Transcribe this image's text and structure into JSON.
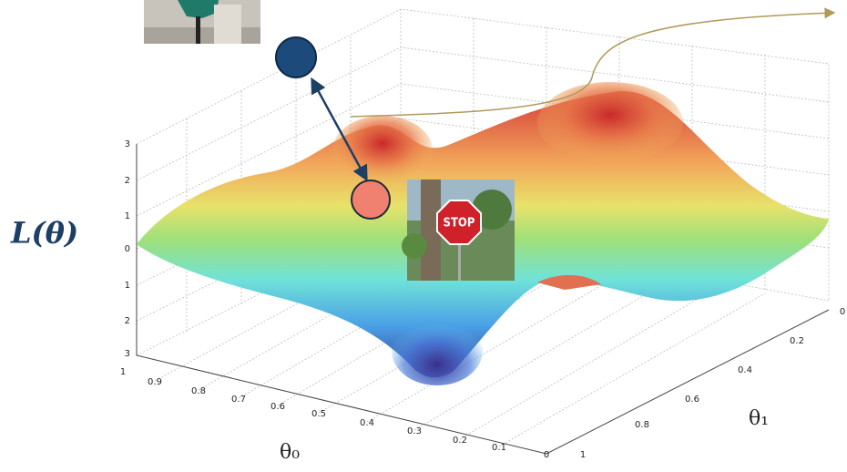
{
  "axes": {
    "z_label": "L(θ)",
    "x_label": "θ₀",
    "y_label": "θ₁",
    "z_ticks": [
      "3",
      "2",
      "1",
      "0",
      "1",
      "2",
      "3"
    ],
    "x_ticks": [
      "1",
      "0.9",
      "0.8",
      "0.7",
      "0.6",
      "0.5",
      "0.4",
      "0.3",
      "0.2",
      "0.1",
      "0"
    ],
    "y_ticks": [
      "0",
      "0.2",
      "0.4",
      "0.6",
      "0.8",
      "1"
    ]
  },
  "images": {
    "stop_sign": {
      "text": "STOP"
    }
  }
}
